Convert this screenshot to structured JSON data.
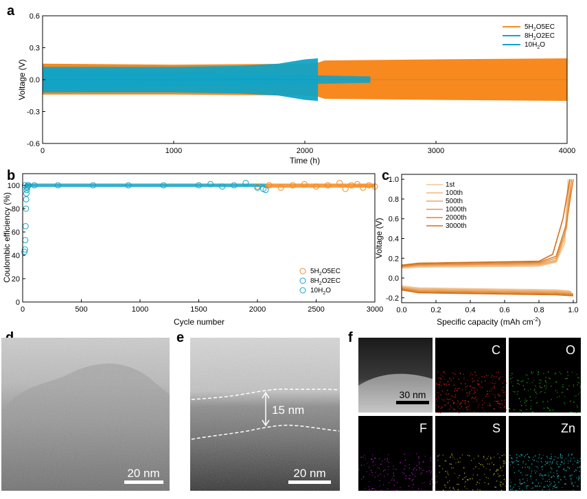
{
  "colors": {
    "orange": "#f7891e",
    "blue": "#11a3c6",
    "lightorange": "#f9c48e"
  },
  "panels": {
    "a": "a",
    "b": "b",
    "c": "c",
    "d": "d",
    "e": "e",
    "f": "f"
  },
  "chart_data": [
    {
      "id": "a",
      "type": "area",
      "xlabel": "Time (h)",
      "ylabel": "Voltage (V)",
      "xlim": [
        0,
        4000
      ],
      "ylim": [
        -0.6,
        0.6
      ],
      "xticks": [
        "0",
        "1000",
        "2000",
        "3000",
        "4000"
      ],
      "yticks": [
        "0.6",
        "0.3",
        "0.0",
        "-0.3",
        "-0.6"
      ],
      "legend": [
        {
          "t": "5H",
          "s1": "2",
          "m": "O5EC",
          "s2": ""
        },
        {
          "t": "8H",
          "s1": "2",
          "m": "O2EC",
          "s2": ""
        },
        {
          "t": "10H",
          "s1": "2",
          "m": "O",
          "s2": ""
        }
      ],
      "series": [
        {
          "name": "5H2O5EC",
          "color": "orange",
          "band": [
            [
              0,
              0.15,
              -0.14
            ],
            [
              1000,
              0.14,
              -0.14
            ],
            [
              2000,
              0.15,
              -0.15
            ],
            [
              2100,
              0.16,
              -0.16
            ],
            [
              2150,
              0.18,
              -0.18
            ],
            [
              3000,
              0.19,
              -0.19
            ],
            [
              4000,
              0.2,
              -0.2
            ]
          ]
        },
        {
          "name": "8H2O2EC",
          "color": "blue",
          "band": [
            [
              0,
              0.09,
              -0.09
            ],
            [
              2500,
              0.03,
              -0.03
            ]
          ]
        },
        {
          "name": "10H2O",
          "color": "blue",
          "band": [
            [
              0,
              0.12,
              -0.12
            ],
            [
              500,
              0.12,
              -0.12
            ],
            [
              1000,
              0.12,
              -0.12
            ],
            [
              1500,
              0.13,
              -0.13
            ],
            [
              1800,
              0.15,
              -0.15
            ],
            [
              2000,
              0.19,
              -0.19
            ],
            [
              2100,
              0.2,
              -0.2
            ]
          ]
        }
      ]
    },
    {
      "id": "b",
      "type": "scatter",
      "xlabel": "Cycle number",
      "ylabel": "Coulombic efficiency (%)",
      "xlim": [
        0,
        3000
      ],
      "ylim": [
        0,
        110
      ],
      "xticks": [
        "0",
        "500",
        "1000",
        "1500",
        "2000",
        "2500",
        "3000"
      ],
      "yticks": [
        "100",
        "80",
        "60",
        "40",
        "20",
        "0"
      ],
      "legend": [
        {
          "t": "5H",
          "s1": "2",
          "m": "O5EC",
          "s2": ""
        },
        {
          "t": "8H",
          "s1": "2",
          "m": "O2EC",
          "s2": ""
        },
        {
          "t": "10H",
          "s1": "2",
          "m": "O",
          "s2": ""
        }
      ],
      "series": [
        {
          "name": "5H2O5EC",
          "color": "orange",
          "x": [
            2000,
            2100,
            2200,
            2300,
            2400,
            2500,
            2600,
            2700,
            2750,
            2800,
            2850,
            2900,
            2950,
            3000
          ],
          "y": [
            99,
            100,
            98,
            100,
            101,
            99,
            100,
            102,
            97,
            100,
            101,
            98,
            100,
            99
          ]
        },
        {
          "name": "8H2O2EC",
          "color": "blue",
          "x": [
            20,
            100,
            300,
            600,
            900,
            1200,
            1500,
            1600,
            1700,
            1800,
            1900,
            2000,
            2050,
            2070
          ],
          "y": [
            100,
            100,
            100,
            100,
            100,
            100,
            100,
            101,
            99,
            100,
            102,
            98,
            97,
            96
          ]
        },
        {
          "name": "10H2O",
          "color": "blue",
          "x": [
            15,
            20,
            22,
            25,
            28,
            30,
            32,
            35,
            38,
            40,
            45,
            50
          ],
          "y": [
            43,
            45,
            53,
            65,
            80,
            88,
            93,
            96,
            98,
            99,
            100,
            100
          ]
        }
      ]
    },
    {
      "id": "c",
      "type": "line",
      "xlabel": "Specific capacity (mAh cm",
      "xlabel_sup": "-2",
      "xlabel_end": ")",
      "ylabel": "Voltage (V)",
      "xlim": [
        0,
        1.02
      ],
      "ylim": [
        -0.25,
        1.05
      ],
      "xticks": [
        "0.0",
        "0.2",
        "0.4",
        "0.6",
        "0.8",
        "1.0"
      ],
      "yticks": [
        "1.0",
        "0.8",
        "0.6",
        "0.4",
        "0.2",
        "0.0",
        "-0.2"
      ],
      "legend": [
        "1st",
        "100th",
        "500th",
        "1000th",
        "2000th",
        "3000th"
      ],
      "series": [
        {
          "name": "1st",
          "shade": 0.15,
          "charge": [
            [
              0,
              0.1
            ],
            [
              0.1,
              0.11
            ],
            [
              0.8,
              0.12
            ],
            [
              0.9,
              0.16
            ],
            [
              0.95,
              0.35
            ],
            [
              0.97,
              1.0
            ]
          ],
          "discharge": [
            [
              0,
              -0.08
            ],
            [
              0.1,
              -0.1
            ],
            [
              0.9,
              -0.12
            ],
            [
              0.98,
              -0.13
            ]
          ]
        },
        {
          "name": "100th",
          "shade": 0.3,
          "charge": [
            [
              0,
              0.11
            ],
            [
              0.1,
              0.12
            ],
            [
              0.8,
              0.13
            ],
            [
              0.9,
              0.17
            ],
            [
              0.95,
              0.4
            ],
            [
              0.98,
              1.0
            ]
          ],
          "discharge": [
            [
              0,
              -0.09
            ],
            [
              0.1,
              -0.11
            ],
            [
              0.9,
              -0.13
            ],
            [
              0.99,
              -0.14
            ]
          ]
        },
        {
          "name": "500th",
          "shade": 0.45,
          "charge": [
            [
              0,
              0.11
            ],
            [
              0.1,
              0.13
            ],
            [
              0.8,
              0.14
            ],
            [
              0.9,
              0.18
            ],
            [
              0.95,
              0.45
            ],
            [
              0.99,
              1.0
            ]
          ],
          "discharge": [
            [
              0,
              -0.1
            ],
            [
              0.1,
              -0.12
            ],
            [
              0.9,
              -0.14
            ],
            [
              0.99,
              -0.15
            ]
          ]
        },
        {
          "name": "1000th",
          "shade": 0.6,
          "charge": [
            [
              0,
              0.12
            ],
            [
              0.1,
              0.13
            ],
            [
              0.8,
              0.15
            ],
            [
              0.9,
              0.2
            ],
            [
              0.96,
              0.5
            ],
            [
              0.99,
              1.0
            ]
          ],
          "discharge": [
            [
              0,
              -0.1
            ],
            [
              0.1,
              -0.13
            ],
            [
              0.9,
              -0.15
            ],
            [
              1.0,
              -0.16
            ]
          ]
        },
        {
          "name": "2000th",
          "shade": 0.8,
          "charge": [
            [
              0,
              0.12
            ],
            [
              0.1,
              0.14
            ],
            [
              0.8,
              0.16
            ],
            [
              0.9,
              0.22
            ],
            [
              0.96,
              0.55
            ],
            [
              1.0,
              1.0
            ]
          ],
          "discharge": [
            [
              0,
              -0.11
            ],
            [
              0.1,
              -0.14
            ],
            [
              0.9,
              -0.16
            ],
            [
              1.0,
              -0.17
            ]
          ]
        },
        {
          "name": "3000th",
          "shade": 1.0,
          "charge": [
            [
              0,
              0.13
            ],
            [
              0.1,
              0.15
            ],
            [
              0.8,
              0.17
            ],
            [
              0.88,
              0.24
            ],
            [
              0.94,
              0.6
            ],
            [
              0.98,
              1.0
            ]
          ],
          "discharge": [
            [
              0,
              -0.12
            ],
            [
              0.1,
              -0.15
            ],
            [
              0.9,
              -0.17
            ],
            [
              1.0,
              -0.18
            ]
          ]
        }
      ]
    }
  ],
  "images": {
    "d": {
      "scalebar": "20 nm"
    },
    "e": {
      "scalebar": "20 nm",
      "thickness": "15 nm"
    },
    "f": {
      "scalebar": "30 nm",
      "tiles": [
        {
          "label": "",
          "color": "#ffffff"
        },
        {
          "label": "C",
          "color": "#e02020"
        },
        {
          "label": "O",
          "color": "#20c020"
        },
        {
          "label": "F",
          "color": "#b020c0"
        },
        {
          "label": "S",
          "color": "#c8c020"
        },
        {
          "label": "Zn",
          "color": "#20c8d0"
        }
      ]
    }
  }
}
